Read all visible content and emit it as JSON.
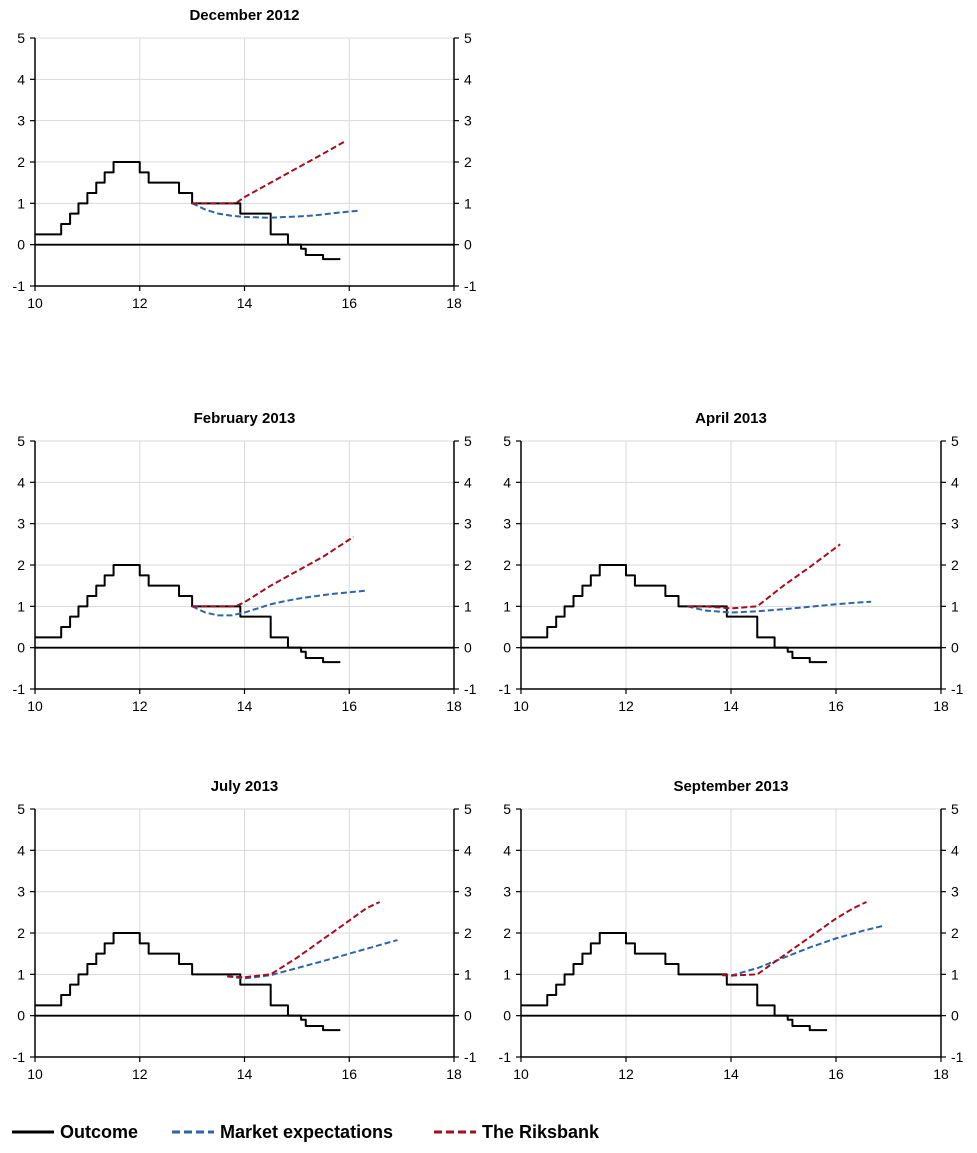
{
  "chart_data": [
    {
      "type": "line",
      "title": "December 2012",
      "xlim": [
        10,
        18
      ],
      "ylim": [
        -1,
        5
      ],
      "xticks": [
        10,
        12,
        14,
        16,
        18
      ],
      "yticks": [
        -1,
        0,
        1,
        2,
        3,
        4,
        5
      ],
      "grid": true,
      "series": [
        {
          "name": "Outcome",
          "step": true,
          "color": "#000000",
          "x": [
            10,
            10.5,
            10.67,
            10.83,
            11,
            11.17,
            11.33,
            11.5,
            11.75,
            12,
            12.17,
            12.75,
            13,
            13.17,
            13.75,
            13.92,
            14.5,
            14.83,
            15.08,
            15.17,
            15.25,
            15.5,
            15.83
          ],
          "y": [
            0.25,
            0.5,
            0.75,
            1.0,
            1.25,
            1.5,
            1.75,
            2.0,
            2.0,
            1.75,
            1.5,
            1.25,
            1.0,
            1.0,
            1.0,
            0.75,
            0.25,
            0.0,
            -0.1,
            -0.25,
            -0.25,
            -0.35,
            -0.35
          ]
        },
        {
          "name": "Market expectations",
          "color": "#2E64A8",
          "x": [
            13.0,
            13.25,
            13.5,
            13.75,
            14.0,
            14.25,
            14.5,
            14.75,
            15.0,
            15.25,
            15.5,
            15.75,
            16.0,
            16.17
          ],
          "y": [
            1.0,
            0.85,
            0.75,
            0.7,
            0.67,
            0.66,
            0.65,
            0.67,
            0.68,
            0.7,
            0.73,
            0.77,
            0.8,
            0.82
          ]
        },
        {
          "name": "The Riksbank",
          "color": "#A50D1E",
          "x": [
            13.0,
            13.5,
            13.83,
            14.0,
            14.5,
            15.0,
            15.5,
            15.92
          ],
          "y": [
            1.0,
            1.0,
            1.0,
            1.15,
            1.5,
            1.85,
            2.2,
            2.5
          ]
        }
      ]
    },
    {
      "type": "line",
      "title": "February 2013",
      "xlim": [
        10,
        18
      ],
      "ylim": [
        -1,
        5
      ],
      "xticks": [
        10,
        12,
        14,
        16,
        18
      ],
      "yticks": [
        -1,
        0,
        1,
        2,
        3,
        4,
        5
      ],
      "grid": true,
      "series": [
        {
          "name": "Outcome",
          "step": true,
          "color": "#000000",
          "x": [
            10,
            10.5,
            10.67,
            10.83,
            11,
            11.17,
            11.33,
            11.5,
            11.75,
            12,
            12.17,
            12.75,
            13,
            13.17,
            13.75,
            13.92,
            14.5,
            14.83,
            15.08,
            15.17,
            15.25,
            15.5,
            15.83
          ],
          "y": [
            0.25,
            0.5,
            0.75,
            1.0,
            1.25,
            1.5,
            1.75,
            2.0,
            2.0,
            1.75,
            1.5,
            1.25,
            1.0,
            1.0,
            1.0,
            0.75,
            0.25,
            0.0,
            -0.1,
            -0.25,
            -0.25,
            -0.35,
            -0.35
          ]
        },
        {
          "name": "Market expectations",
          "color": "#2E64A8",
          "x": [
            13.0,
            13.25,
            13.5,
            13.75,
            14.0,
            14.25,
            14.5,
            14.75,
            15.0,
            15.25,
            15.5,
            15.75,
            16.0,
            16.25,
            16.33
          ],
          "y": [
            1.0,
            0.85,
            0.78,
            0.78,
            0.85,
            0.95,
            1.05,
            1.12,
            1.18,
            1.23,
            1.27,
            1.31,
            1.34,
            1.37,
            1.38
          ]
        },
        {
          "name": "The Riksbank",
          "color": "#A50D1E",
          "x": [
            13.0,
            13.5,
            13.83,
            14.0,
            14.5,
            15.0,
            15.5,
            16.08
          ],
          "y": [
            1.0,
            1.0,
            1.0,
            1.1,
            1.5,
            1.85,
            2.2,
            2.68
          ]
        }
      ]
    },
    {
      "type": "line",
      "title": "April 2013",
      "xlim": [
        10,
        18
      ],
      "ylim": [
        -1,
        5
      ],
      "xticks": [
        10,
        12,
        14,
        16,
        18
      ],
      "yticks": [
        -1,
        0,
        1,
        2,
        3,
        4,
        5
      ],
      "grid": true,
      "series": [
        {
          "name": "Outcome",
          "step": true,
          "color": "#000000",
          "x": [
            10,
            10.5,
            10.67,
            10.83,
            11,
            11.17,
            11.33,
            11.5,
            11.75,
            12,
            12.17,
            12.75,
            13,
            13.17,
            13.75,
            13.92,
            14.5,
            14.83,
            15.08,
            15.17,
            15.25,
            15.5,
            15.83
          ],
          "y": [
            0.25,
            0.5,
            0.75,
            1.0,
            1.25,
            1.5,
            1.75,
            2.0,
            2.0,
            1.75,
            1.5,
            1.25,
            1.0,
            1.0,
            1.0,
            0.75,
            0.25,
            0.0,
            -0.1,
            -0.25,
            -0.25,
            -0.35,
            -0.35
          ]
        },
        {
          "name": "Market expectations",
          "color": "#2E64A8",
          "x": [
            13.17,
            13.5,
            14.0,
            14.5,
            15.0,
            15.5,
            16.0,
            16.5,
            16.67
          ],
          "y": [
            1.0,
            0.9,
            0.85,
            0.88,
            0.93,
            0.99,
            1.05,
            1.1,
            1.11
          ]
        },
        {
          "name": "The Riksbank",
          "color": "#A50D1E",
          "x": [
            13.17,
            13.5,
            14.0,
            14.5,
            15.0,
            15.5,
            16.08
          ],
          "y": [
            1.0,
            1.0,
            0.95,
            1.0,
            1.5,
            1.95,
            2.5
          ]
        }
      ]
    },
    {
      "type": "line",
      "title": "July 2013",
      "xlim": [
        10,
        18
      ],
      "ylim": [
        -1,
        5
      ],
      "xticks": [
        10,
        12,
        14,
        16,
        18
      ],
      "yticks": [
        -1,
        0,
        1,
        2,
        3,
        4,
        5
      ],
      "grid": true,
      "series": [
        {
          "name": "Outcome",
          "step": true,
          "color": "#000000",
          "x": [
            10,
            10.5,
            10.67,
            10.83,
            11,
            11.17,
            11.33,
            11.5,
            11.75,
            12,
            12.17,
            12.75,
            13,
            13.17,
            13.75,
            13.92,
            14.5,
            14.83,
            15.08,
            15.17,
            15.25,
            15.5,
            15.83
          ],
          "y": [
            0.25,
            0.5,
            0.75,
            1.0,
            1.25,
            1.5,
            1.75,
            2.0,
            2.0,
            1.75,
            1.5,
            1.25,
            1.0,
            1.0,
            1.0,
            0.75,
            0.25,
            0.0,
            -0.1,
            -0.25,
            -0.25,
            -0.35,
            -0.35
          ]
        },
        {
          "name": "Market expectations",
          "color": "#2E64A8",
          "x": [
            13.67,
            14.0,
            14.5,
            15.0,
            15.5,
            16.0,
            16.5,
            16.92
          ],
          "y": [
            0.95,
            0.9,
            0.98,
            1.15,
            1.32,
            1.5,
            1.68,
            1.83
          ]
        },
        {
          "name": "The Riksbank",
          "color": "#A50D1E",
          "x": [
            13.67,
            14.0,
            14.5,
            15.0,
            15.5,
            16.0,
            16.33,
            16.58
          ],
          "y": [
            0.95,
            0.93,
            1.0,
            1.4,
            1.85,
            2.3,
            2.6,
            2.75
          ]
        }
      ]
    },
    {
      "type": "line",
      "title": "September 2013",
      "xlim": [
        10,
        18
      ],
      "ylim": [
        -1,
        5
      ],
      "xticks": [
        10,
        12,
        14,
        16,
        18
      ],
      "yticks": [
        -1,
        0,
        1,
        2,
        3,
        4,
        5
      ],
      "grid": true,
      "series": [
        {
          "name": "Outcome",
          "step": true,
          "color": "#000000",
          "x": [
            10,
            10.5,
            10.67,
            10.83,
            11,
            11.17,
            11.33,
            11.5,
            11.75,
            12,
            12.17,
            12.75,
            13,
            13.17,
            13.75,
            13.92,
            14.5,
            14.83,
            15.08,
            15.17,
            15.25,
            15.5,
            15.83
          ],
          "y": [
            0.25,
            0.5,
            0.75,
            1.0,
            1.25,
            1.5,
            1.75,
            2.0,
            2.0,
            1.75,
            1.5,
            1.25,
            1.0,
            1.0,
            1.0,
            0.75,
            0.25,
            0.0,
            -0.1,
            -0.25,
            -0.25,
            -0.35,
            -0.35
          ]
        },
        {
          "name": "Market expectations",
          "color": "#2E64A8",
          "x": [
            13.83,
            14.0,
            14.5,
            15.0,
            15.5,
            16.0,
            16.5,
            16.92
          ],
          "y": [
            0.98,
            0.97,
            1.15,
            1.4,
            1.65,
            1.87,
            2.05,
            2.18
          ]
        },
        {
          "name": "The Riksbank",
          "color": "#A50D1E",
          "x": [
            13.83,
            14.0,
            14.5,
            15.0,
            15.5,
            16.0,
            16.33,
            16.58
          ],
          "y": [
            0.98,
            0.97,
            1.0,
            1.45,
            1.9,
            2.35,
            2.6,
            2.75
          ]
        }
      ]
    }
  ],
  "legend": [
    {
      "label": "Outcome",
      "color": "#000000",
      "dash": false
    },
    {
      "label": "Market expectations",
      "color": "#2E64A8",
      "dash": true
    },
    {
      "label": "The Riksbank",
      "color": "#A50D1E",
      "dash": true
    }
  ]
}
